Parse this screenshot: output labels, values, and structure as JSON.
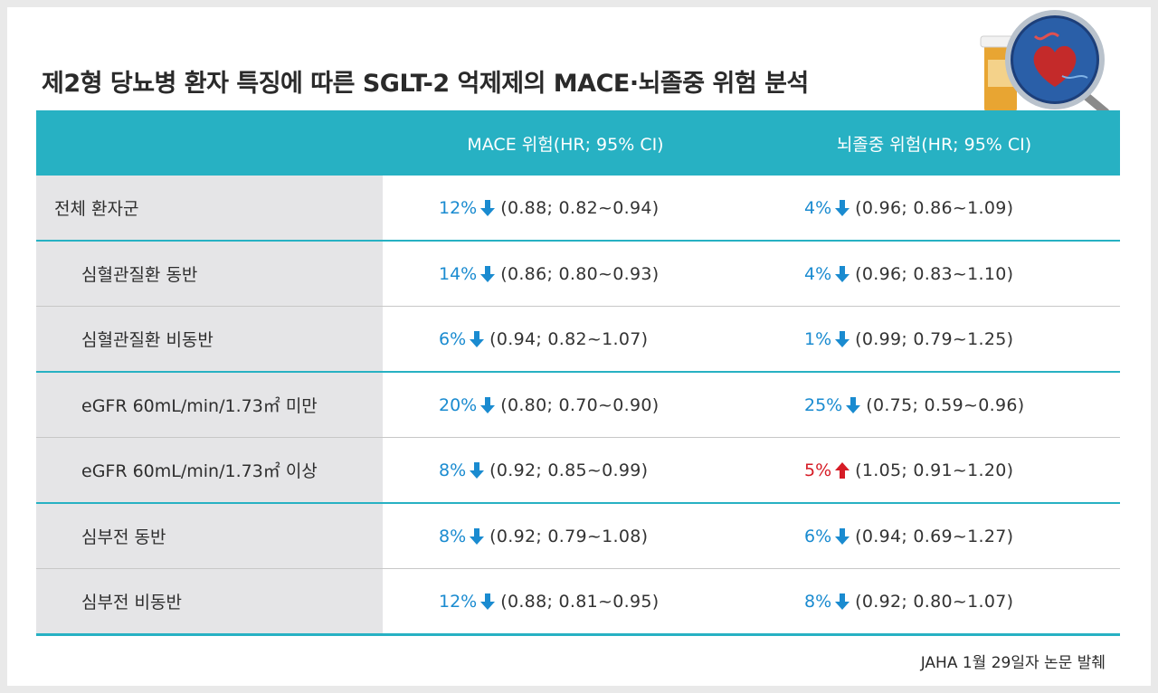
{
  "title": "제2형 당뇨병 환자 특징에 따른 SGLT-2 억제제의 MACE·뇌졸중 위험 분석",
  "header": {
    "col1": "",
    "col2": "MACE 위험(HR; 95% CI)",
    "col3": "뇌졸중 위험(HR; 95% CI)"
  },
  "rows": [
    {
      "label": "전체 환자군",
      "mace": {
        "pct": "12%",
        "dir": "down",
        "ci": "(0.88; 0.82~0.94)"
      },
      "stroke": {
        "pct": "4%",
        "dir": "down",
        "ci": "(0.96; 0.86~1.09)"
      }
    },
    {
      "label": "심혈관질환 동반",
      "mace": {
        "pct": "14%",
        "dir": "down",
        "ci": "(0.86; 0.80~0.93)"
      },
      "stroke": {
        "pct": "4%",
        "dir": "down",
        "ci": "(0.96; 0.83~1.10)"
      }
    },
    {
      "label": "심혈관질환 비동반",
      "mace": {
        "pct": "6%",
        "dir": "down",
        "ci": "(0.94; 0.82~1.07)"
      },
      "stroke": {
        "pct": "1%",
        "dir": "down",
        "ci": "(0.99; 0.79~1.25)"
      }
    },
    {
      "label": "eGFR 60mL/min/1.73㎡ 미만",
      "mace": {
        "pct": "20%",
        "dir": "down",
        "ci": "(0.80; 0.70~0.90)"
      },
      "stroke": {
        "pct": "25%",
        "dir": "down",
        "ci": "(0.75; 0.59~0.96)"
      }
    },
    {
      "label": "eGFR 60mL/min/1.73㎡ 이상",
      "mace": {
        "pct": "8%",
        "dir": "down",
        "ci": "(0.92; 0.85~0.99)"
      },
      "stroke": {
        "pct": "5%",
        "dir": "up",
        "ci": "(1.05; 0.91~1.20)"
      }
    },
    {
      "label": "심부전 동반",
      "mace": {
        "pct": "8%",
        "dir": "down",
        "ci": "(0.92; 0.79~1.08)"
      },
      "stroke": {
        "pct": "6%",
        "dir": "down",
        "ci": "(0.94; 0.69~1.27)"
      }
    },
    {
      "label": "심부전 비동반",
      "mace": {
        "pct": "12%",
        "dir": "down",
        "ci": "(0.88; 0.81~0.95)"
      },
      "stroke": {
        "pct": "8%",
        "dir": "down",
        "ci": "(0.92; 0.80~1.07)"
      }
    }
  ],
  "source": "JAHA 1월 29일자 논문 발췌",
  "colors": {
    "accent": "#27b1c3",
    "down": "#1a8bd0",
    "up": "#d61c26",
    "label_bg": "#e5e5e7"
  },
  "icons": {
    "down": "arrow-down-icon",
    "up": "arrow-up-icon",
    "illustration": "heart-magnifier-icon"
  }
}
